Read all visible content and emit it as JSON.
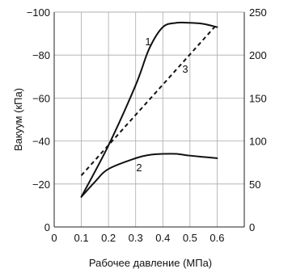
{
  "chart_data": {
    "type": "line",
    "xlabel": "Рабочее давление (МПа)",
    "ylabel": "Вакуум (кПа)",
    "x_ticks": [
      "0",
      "0.1",
      "0.2",
      "0.3",
      "0.4",
      "0.5",
      "0.6"
    ],
    "y_ticks_left": [
      "0",
      "−20",
      "−40",
      "−60",
      "−80",
      "−100"
    ],
    "y_ticks_right": [
      "0",
      "50",
      "100",
      "150",
      "200",
      "250"
    ],
    "xlim": [
      0,
      0.7
    ],
    "ylim_left": [
      0,
      -100
    ],
    "ylim_right": [
      0,
      250
    ],
    "grid": true,
    "series": [
      {
        "name": "1",
        "axis": "left",
        "style": "solid",
        "x": [
          0.1,
          0.2,
          0.3,
          0.35,
          0.4,
          0.45,
          0.5,
          0.55,
          0.6
        ],
        "y": [
          -14,
          -38,
          -66,
          -83,
          -93,
          -95,
          -95,
          -94.5,
          -93
        ]
      },
      {
        "name": "2",
        "axis": "left",
        "style": "solid",
        "x": [
          0.1,
          0.15,
          0.2,
          0.3,
          0.35,
          0.4,
          0.45,
          0.5,
          0.6
        ],
        "y": [
          -14,
          -21,
          -27,
          -32,
          -33.5,
          -34,
          -34,
          -33.2,
          -32
        ]
      },
      {
        "name": "3",
        "axis": "right",
        "style": "dashed",
        "x": [
          0.1,
          0.6
        ],
        "y": [
          60,
          236
        ]
      }
    ],
    "line_color": "#111111",
    "grid_color": "#aaaaaa"
  }
}
